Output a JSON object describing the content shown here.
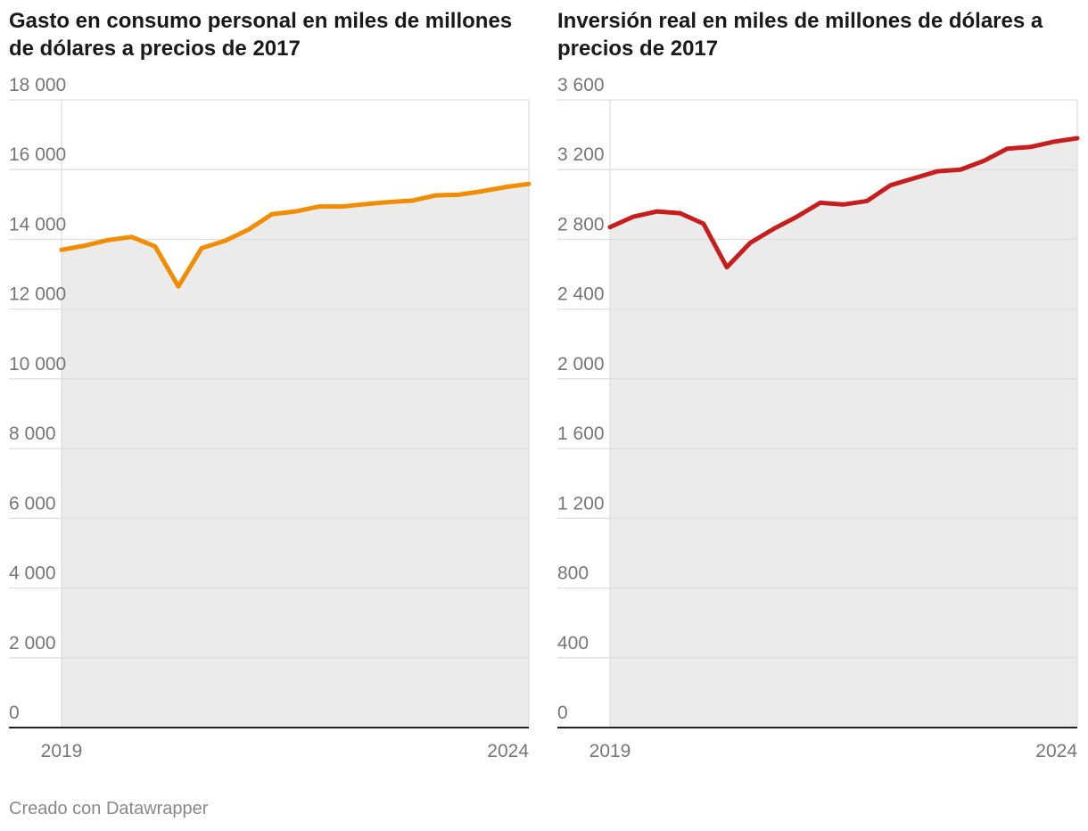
{
  "chart_data": [
    {
      "type": "area",
      "title": "Gasto en consumo personal en miles de millones de dólares a precios de 2017",
      "xlabel": "",
      "ylabel": "",
      "ylim": [
        0,
        18000
      ],
      "yticks": [
        0,
        2000,
        4000,
        6000,
        8000,
        10000,
        12000,
        14000,
        16000,
        18000
      ],
      "ytick_labels": [
        "0",
        "2 000",
        "4 000",
        "6 000",
        "8 000",
        "10 000",
        "12 000",
        "14 000",
        "16 000",
        "18 000"
      ],
      "xtick_labels": [
        "2019",
        "2024"
      ],
      "color": "#f28c00",
      "x": [
        2019.0,
        2019.25,
        2019.5,
        2019.75,
        2020.0,
        2020.25,
        2020.5,
        2020.75,
        2021.0,
        2021.25,
        2021.5,
        2021.75,
        2022.0,
        2022.25,
        2022.5,
        2022.75,
        2023.0,
        2023.25,
        2023.5,
        2023.75,
        2024.0
      ],
      "values": [
        13700,
        13820,
        13980,
        14070,
        13800,
        12650,
        13750,
        13960,
        14280,
        14720,
        14800,
        14940,
        14940,
        15010,
        15070,
        15110,
        15260,
        15280,
        15380,
        15500,
        15590
      ]
    },
    {
      "type": "area",
      "title": "Inversión real en miles de millones de dólares a precios de 2017",
      "xlabel": "",
      "ylabel": "",
      "ylim": [
        0,
        3600
      ],
      "yticks": [
        0,
        400,
        800,
        1200,
        1600,
        2000,
        2400,
        2800,
        3200,
        3600
      ],
      "ytick_labels": [
        "0",
        "400",
        "800",
        "1 200",
        "1 600",
        "2 000",
        "2 400",
        "2 800",
        "3 200",
        "3 600"
      ],
      "xtick_labels": [
        "2019",
        "2024"
      ],
      "color": "#c71e1d",
      "x": [
        2019.0,
        2019.25,
        2019.5,
        2019.75,
        2020.0,
        2020.25,
        2020.5,
        2020.75,
        2021.0,
        2021.25,
        2021.5,
        2021.75,
        2022.0,
        2022.25,
        2022.5,
        2022.75,
        2023.0,
        2023.25,
        2023.5,
        2023.75,
        2024.0
      ],
      "values": [
        2870,
        2930,
        2960,
        2950,
        2890,
        2640,
        2780,
        2860,
        2930,
        3010,
        3000,
        3020,
        3110,
        3150,
        3190,
        3200,
        3250,
        3320,
        3330,
        3360,
        3380
      ]
    }
  ],
  "footer": "Creado con Datawrapper"
}
